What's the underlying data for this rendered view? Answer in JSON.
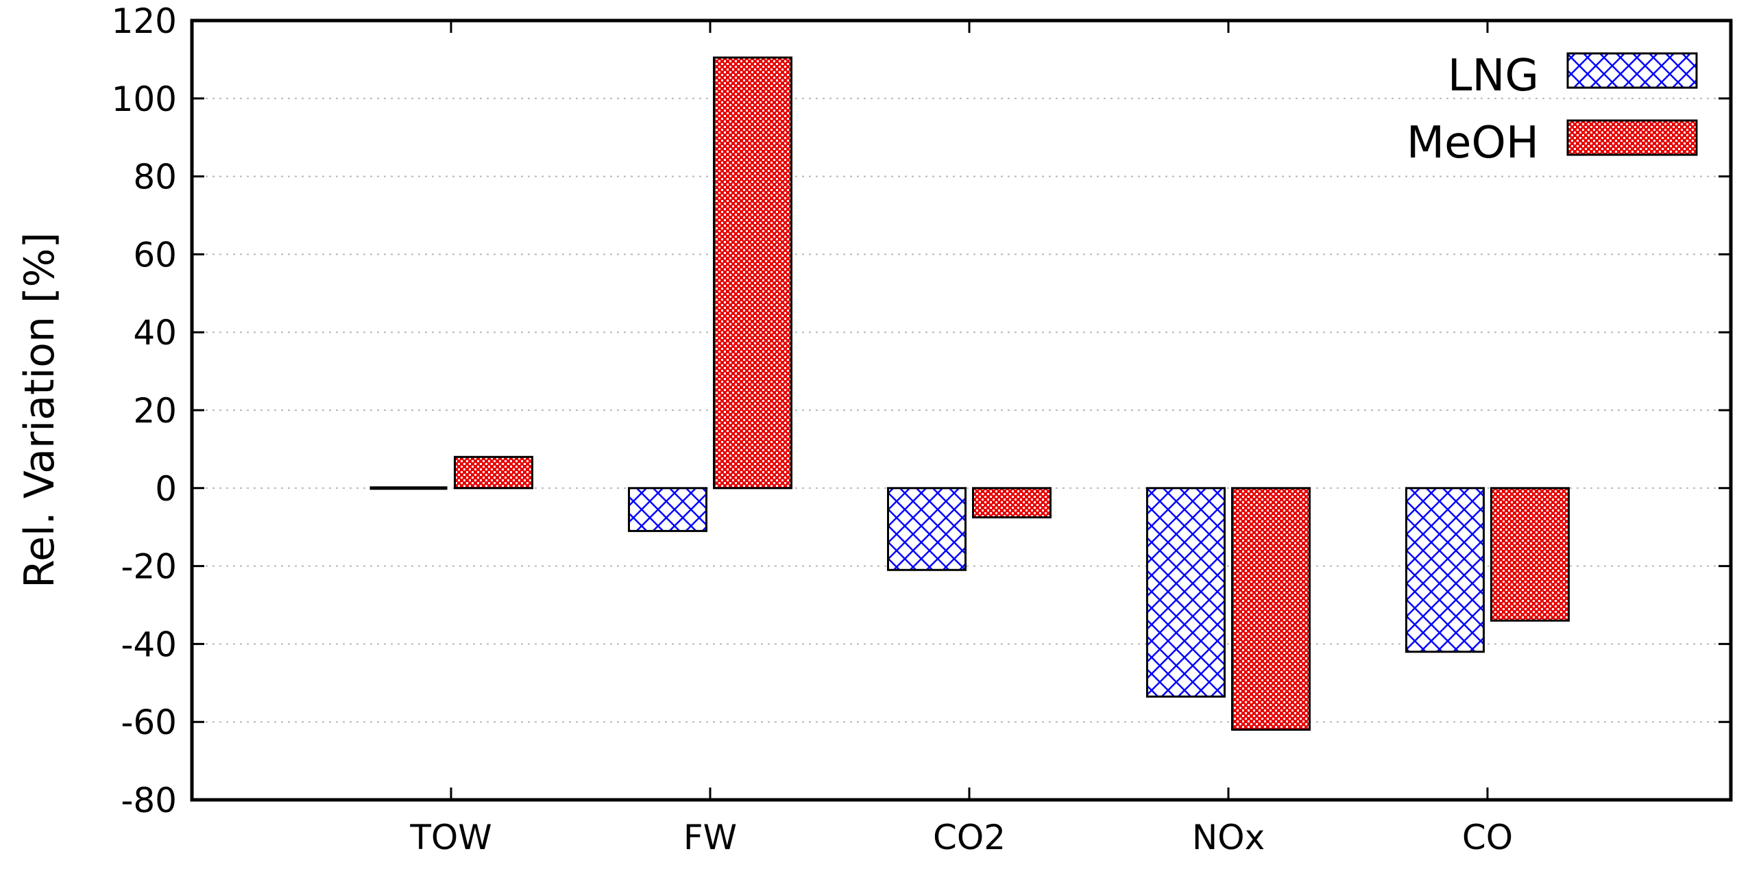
{
  "chart_data": {
    "type": "bar",
    "title": "",
    "xlabel": "",
    "ylabel": "Rel. Variation [%]",
    "ylim": [
      -80,
      120
    ],
    "yticks": [
      -80,
      -60,
      -40,
      -20,
      0,
      20,
      40,
      60,
      80,
      100,
      120
    ],
    "grid": true,
    "legend_position": "top-right",
    "categories": [
      "TOW",
      "FW",
      "CO2",
      "NOx",
      "CO"
    ],
    "series": [
      {
        "name": "LNG",
        "pattern": "crosshatch",
        "color": "#0000ff",
        "values": [
          0,
          -11,
          -21,
          -53.5,
          -42
        ]
      },
      {
        "name": "MeOH",
        "pattern": "dots",
        "color": "#ff0000",
        "values": [
          8,
          110.5,
          -7.5,
          -62,
          -34
        ]
      }
    ]
  }
}
